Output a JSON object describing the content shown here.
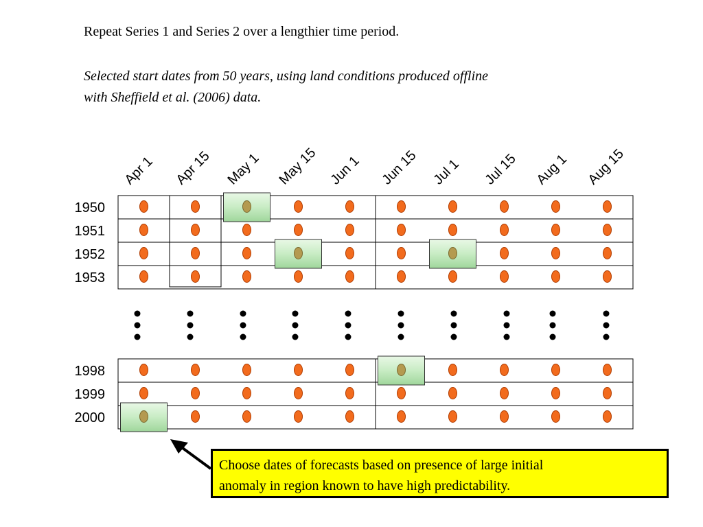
{
  "heading": "Repeat Series 1 and Series 2 over a lengthier time period.",
  "subheading_lines": [
    "Selected start dates from 50 years, using land conditions produced offline",
    "with Sheffield et al. (2006) data."
  ],
  "start_dates": [
    "Apr 1",
    "Apr 15",
    "May 1",
    "May 15",
    "Jun 1",
    "Jun 15",
    "Jul 1",
    "Jul 15",
    "Aug 1",
    "Aug 15"
  ],
  "years_top": [
    "1950",
    "1951",
    "1952",
    "1953"
  ],
  "years_bottom": [
    "1998",
    "1999",
    "2000"
  ],
  "highlighted_cells": [
    {
      "year": "1950",
      "date": "May 1"
    },
    {
      "year": "1952",
      "date": "May 15"
    },
    {
      "year": "1952",
      "date": "Jul 1"
    },
    {
      "year": "1998",
      "date": "Jun 15"
    },
    {
      "year": "2000",
      "date": "Apr 1"
    }
  ],
  "colors": {
    "marker_fill": "#f26b1d",
    "marker_stroke": "#b03c00",
    "highlight_fill": "#c8ecc4",
    "highlight_marker": "#b49a50",
    "callout_fill": "#ffff00"
  },
  "note_lines": [
    "Choose dates of forecasts based on presence of large initial",
    "anomaly in region known to have high predictability."
  ]
}
